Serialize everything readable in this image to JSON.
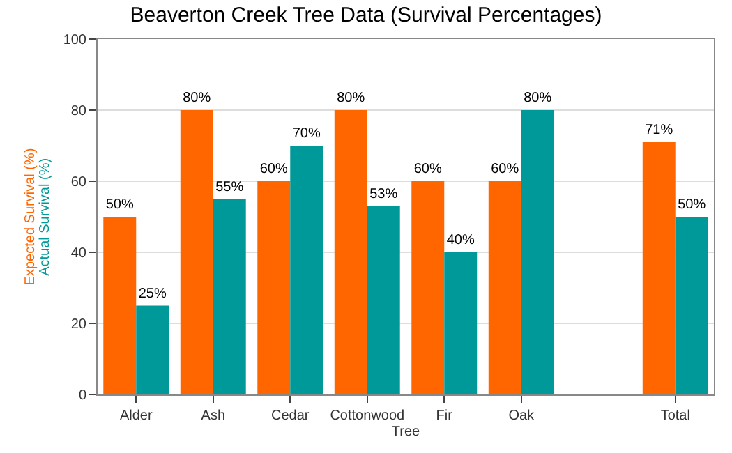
{
  "chart_data": {
    "type": "bar",
    "title": "Beaverton Creek Tree Data (Survival Percentages)",
    "xlabel": "Tree",
    "ylabel": "Expected Survival (%)",
    "annotations": [
      "Actual Survival (%)"
    ],
    "categories": [
      "Alder",
      "Ash",
      "Cedar",
      "Cottonwood",
      "Fir",
      "Oak",
      null,
      "Total"
    ],
    "series": [
      {
        "color": "#ff6600",
        "values": [
          50,
          80,
          60,
          80,
          60,
          60,
          null,
          71
        ],
        "value_labels": [
          "50%",
          "80%",
          "60%",
          "80%",
          "60%",
          "60%",
          null,
          "71%"
        ]
      },
      {
        "color": "#009999",
        "values": [
          25,
          55,
          70,
          53,
          40,
          80,
          null,
          50
        ],
        "value_labels": [
          "25%",
          "55%",
          "70%",
          "53%",
          "40%",
          "80%",
          null,
          "50%"
        ]
      }
    ],
    "ylim": [
      0,
      100
    ],
    "yticks": [
      0,
      20,
      40,
      60,
      80,
      100
    ],
    "grid": "y"
  }
}
